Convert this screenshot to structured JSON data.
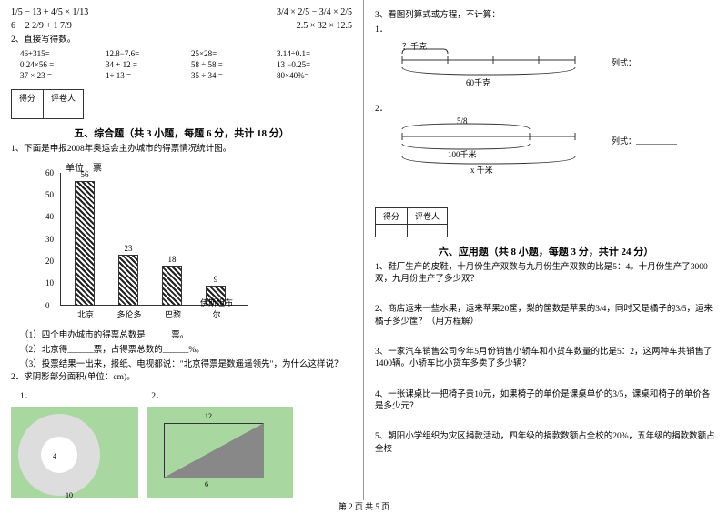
{
  "math_problems": {
    "r1a": "1/5 − 13 + 4/5 × 1/13",
    "r1b": "3/4 × 2/5 − 3/4 × 2/5",
    "r2a": "6 − 2 2/9 + 1 7/9",
    "r2b": "2.5 × 32 × 12.5"
  },
  "direct_calc": {
    "title": "2、直接写得数。",
    "items": [
      [
        "46+315=",
        "12.8−7.6=",
        "25×28=",
        "3.14÷0.1="
      ],
      [
        "0.24×56 =",
        "34 + 12 =",
        "58 ÷ 58 =",
        "13 −0.25="
      ],
      [
        "37 × 23 =",
        "1÷ 13 =",
        "35 ÷ 34 =",
        "80×40%="
      ]
    ]
  },
  "score_labels": {
    "a": "得分",
    "b": "评卷人"
  },
  "section5": {
    "title": "五、综合题（共 3 小题，每题 6 分，共计 18 分）",
    "q1": "1、下面是申报2008年奥运会主办城市的得票情况统计图。",
    "chart": {
      "unit": "单位：票",
      "yticks": [
        0,
        10,
        20,
        30,
        40,
        50,
        60
      ],
      "bars": [
        {
          "label": "北京",
          "value": 56
        },
        {
          "label": "多伦多",
          "value": 23
        },
        {
          "label": "巴黎",
          "value": 18
        },
        {
          "label": "伊斯坦布尔",
          "value": 9
        }
      ]
    },
    "sub1": "（1）四个申办城市的得票总数是______票。",
    "sub2": "（2）北京得______票，占得票总数的______%。",
    "sub3": "（3）投票结果一出来，报纸、电视都说：\"北京得票是数遥遥领先\"，为什么这样说？",
    "q2": "2．求阴影部分面积(单位：cm)。",
    "q2a": "1．",
    "q2b": "2．",
    "geom": {
      "d_inner": "4",
      "d_outer": "10",
      "w": "12",
      "h": "6"
    }
  },
  "section5r": {
    "q3": "3、看图列算式或方程，不计算：",
    "d1": {
      "top": "？千克",
      "bottom": "60千克",
      "ans": "列式：__________"
    },
    "d2": {
      "top": "5/8",
      "mid": "100千米",
      "bottom": "x 千米",
      "ans": "列式：__________"
    },
    "p2": "2．"
  },
  "section6": {
    "title": "六、应用题（共 8 小题，每题 3 分，共计 24 分）",
    "q1": "1、鞋厂生产的皮鞋，十月份生产双数与九月份生产双数的比是5：4。十月份生产了3000双，九月份生产了多少双？",
    "q2": "2、商店运来一些水果，运来苹果20筐，梨的筐数是苹果的3/4，同时又是橘子的3/5，运来橘子多少筐？（用方程解）",
    "q3": "3、一家汽车销售公司今年5月份销售小轿车和小货车数量的比是5：2，这两种车共销售了1400辆。小轿车比小货车多卖了多少辆？",
    "q4": "4、一张课桌比一把椅子贵10元，如果椅子的单价是课桌单价的3/5，课桌和椅子的单价各是多少元？",
    "q5": "5、朝阳小学组织为灾区捐款活动，四年级的捐款数额占全校的20%，五年级的捐款数额占全校"
  },
  "footer": "第 2 页 共 5 页"
}
